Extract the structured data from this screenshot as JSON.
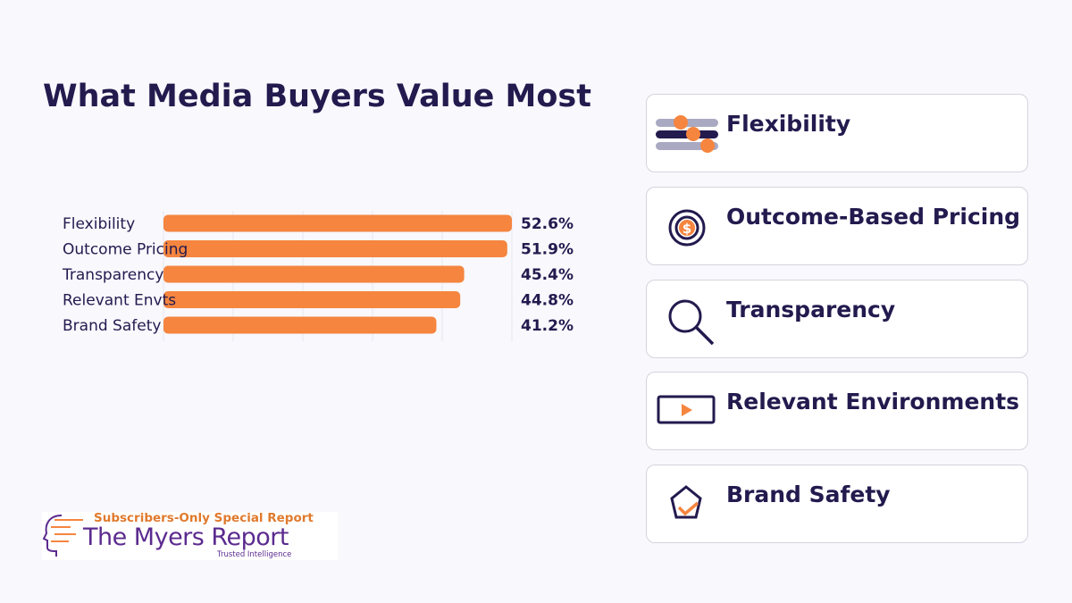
{
  "title": "What Media Buyers Value Most",
  "chart_data": {
    "type": "bar",
    "orientation": "horizontal",
    "categories": [
      "Flexibility",
      "Outcome Pricing",
      "Transparency",
      "Relevant Envts",
      "Brand Safety"
    ],
    "values": [
      52.6,
      51.9,
      45.4,
      44.8,
      41.2
    ],
    "data_labels": [
      "52.6%",
      "51.9%",
      "45.4%",
      "44.8%",
      "41.2%"
    ],
    "xlim": [
      0,
      52.6
    ],
    "grid": true,
    "bar_color": "#f5853f",
    "title": "",
    "xlabel": "",
    "ylabel": ""
  },
  "cards": [
    {
      "label": "Flexibility",
      "icon": "sliders-icon"
    },
    {
      "label": "Outcome-Based Pricing",
      "icon": "dollar-target-icon"
    },
    {
      "label": "Transparency",
      "icon": "magnifier-icon"
    },
    {
      "label": "Relevant Environments",
      "icon": "video-play-icon"
    },
    {
      "label": "Brand Safety",
      "icon": "shield-check-icon"
    }
  ],
  "logo": {
    "subtitle": "Subscribers-Only Special Report",
    "name": "The Myers Report",
    "tagline": "Trusted Intelligence"
  },
  "colors": {
    "accent": "#f5853f",
    "navy": "#231a4e"
  }
}
